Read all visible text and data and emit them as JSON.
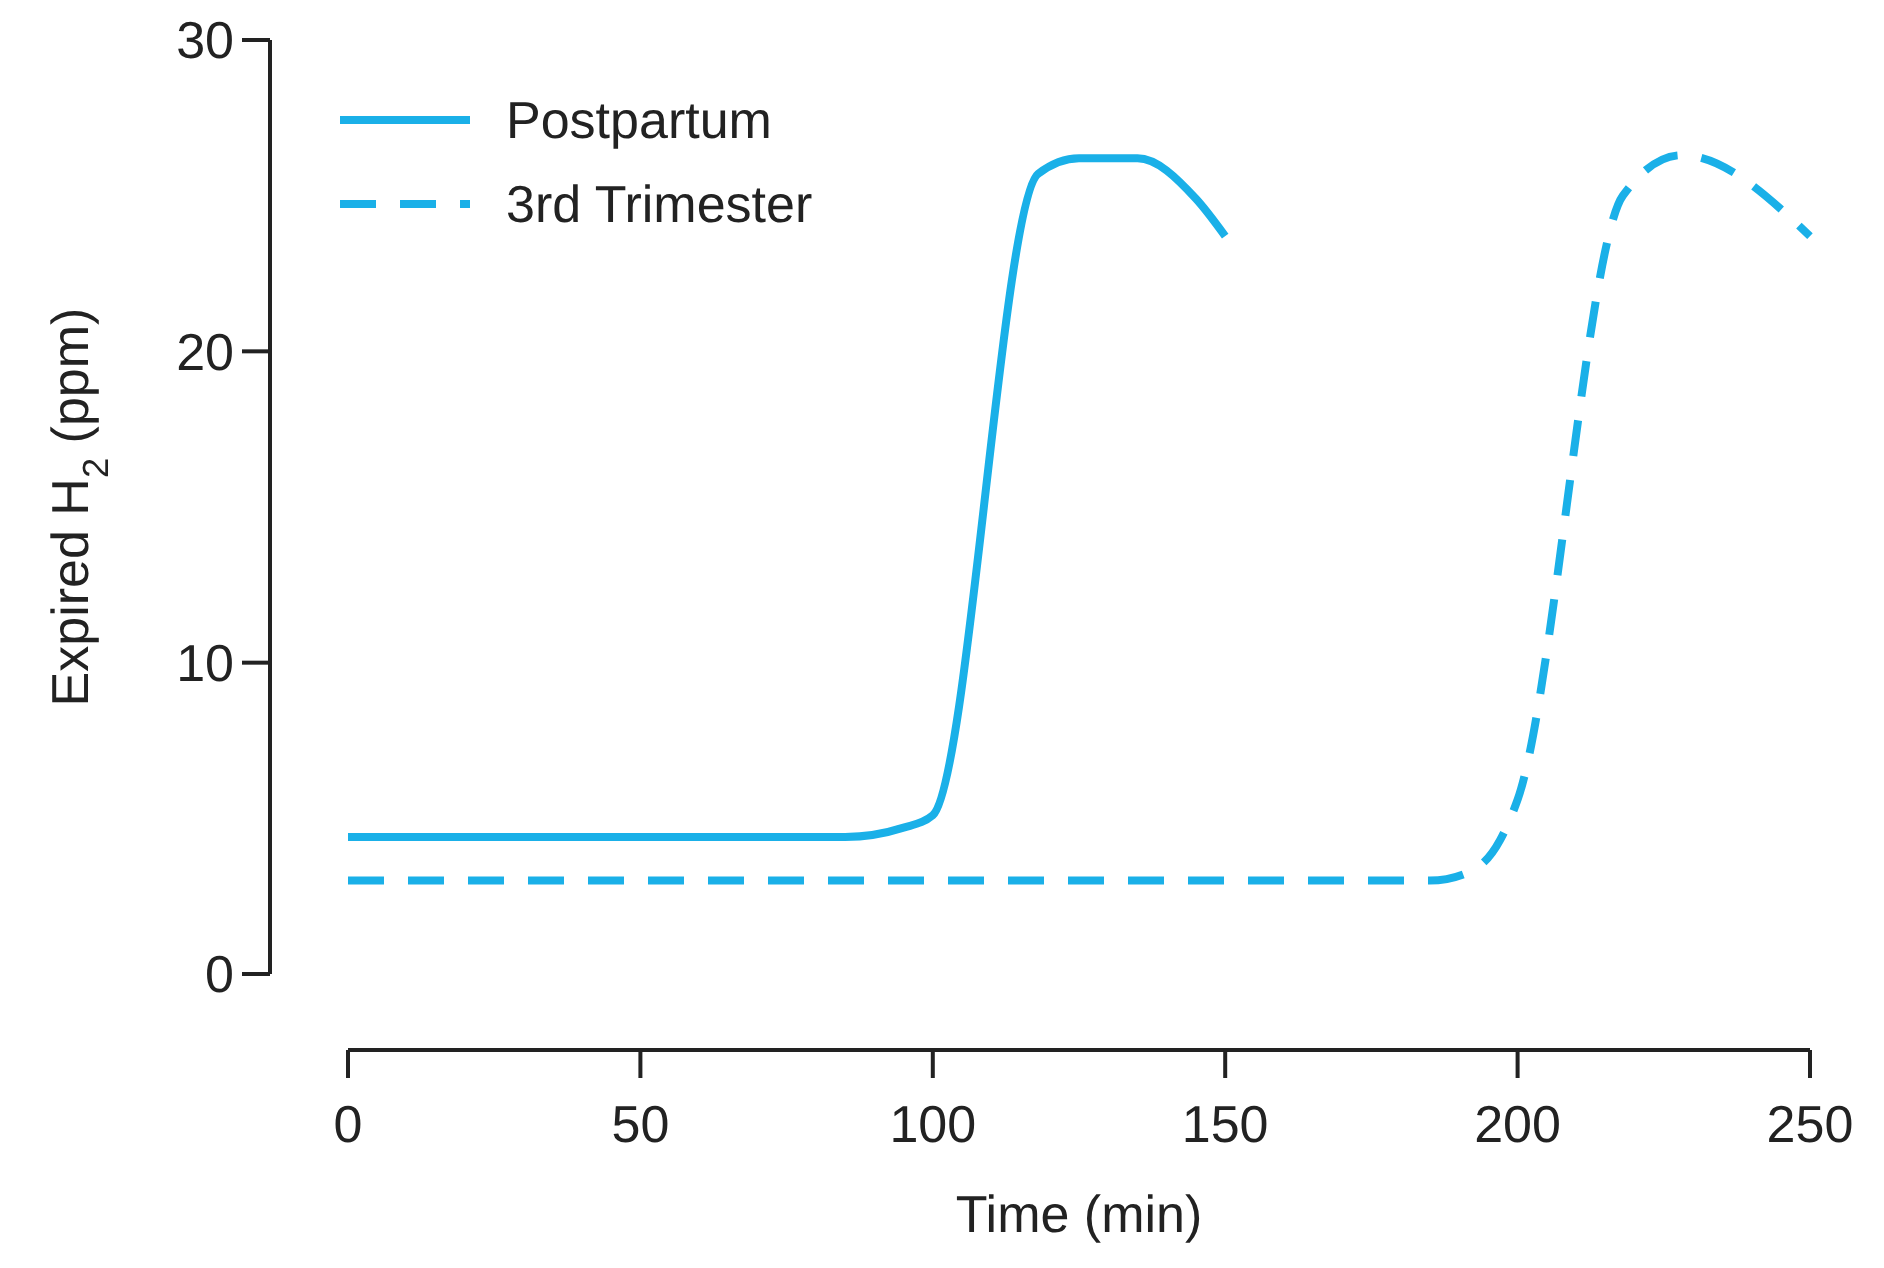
{
  "chart_data": {
    "type": "line",
    "xlabel": "Time (min)",
    "ylabel": "Expired H$_{2}$ (ppm)",
    "xlim": [
      0,
      250
    ],
    "xticks": [
      0,
      50,
      100,
      150,
      200,
      250
    ],
    "ylim": [
      0,
      30
    ],
    "yticks": [
      0,
      10,
      20,
      30
    ],
    "grid": false,
    "legend": "top left",
    "marker": "none",
    "series": [
      {
        "name": "Postpartum",
        "color": "#1ab0e8",
        "line_style": "solid",
        "x": [
          0,
          85,
          95,
          100,
          118,
          125,
          135,
          145,
          150
        ],
        "values": [
          4.4,
          4.4,
          4.7,
          5.1,
          25.7,
          26.2,
          26.2,
          24.9,
          23.7
        ]
      },
      {
        "name": "3rd Trimester",
        "color": "#1ab0e8",
        "line_style": "dashed",
        "x": [
          0,
          185,
          192,
          197,
          200,
          218,
          228,
          250
        ],
        "values": [
          3.0,
          3.0,
          3.3,
          4.3,
          5.6,
          25,
          26.3,
          23.7
        ]
      }
    ]
  }
}
